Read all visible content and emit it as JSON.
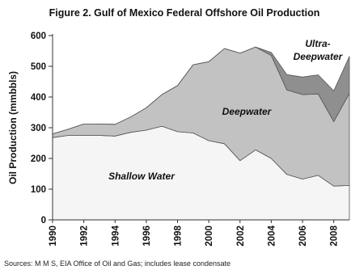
{
  "chart_data": {
    "type": "area",
    "stacked": true,
    "title": "Figure 2. Gulf of Mexico Federal Offshore Oil Production",
    "ylabel": "Oil Production (mmbbls)",
    "xlabel": "",
    "ylim": [
      0,
      600
    ],
    "yticks": [
      0,
      100,
      200,
      300,
      400,
      500,
      600
    ],
    "xticks": [
      1990,
      1992,
      1994,
      1996,
      1998,
      2000,
      2002,
      2004,
      2006,
      2008
    ],
    "grid": false,
    "x": [
      1990,
      1991,
      1992,
      1993,
      1994,
      1995,
      1996,
      1997,
      1998,
      1999,
      2000,
      2001,
      2002,
      2003,
      2004,
      2005,
      2006,
      2007,
      2008,
      2009
    ],
    "series": [
      {
        "name": "Shallow Water",
        "color": "#f5f5f5",
        "values": [
          268,
          275,
          275,
          275,
          273,
          285,
          292,
          305,
          287,
          283,
          258,
          248,
          193,
          228,
          200,
          148,
          133,
          145,
          110,
          112
        ]
      },
      {
        "name": "Deepwater",
        "color": "#c2c2c2",
        "values": [
          12,
          20,
          37,
          37,
          38,
          50,
          73,
          103,
          150,
          222,
          257,
          310,
          350,
          335,
          335,
          275,
          275,
          265,
          210,
          300
        ]
      },
      {
        "name": "Ultra-Deepwater",
        "color": "#8f8f8f",
        "values": [
          0,
          0,
          0,
          0,
          0,
          0,
          0,
          0,
          0,
          0,
          0,
          0,
          0,
          0,
          10,
          50,
          57,
          62,
          100,
          120
        ]
      }
    ],
    "source": "Sources: M M S, EIA Office of Oil and Gas; includes lease condensate"
  }
}
